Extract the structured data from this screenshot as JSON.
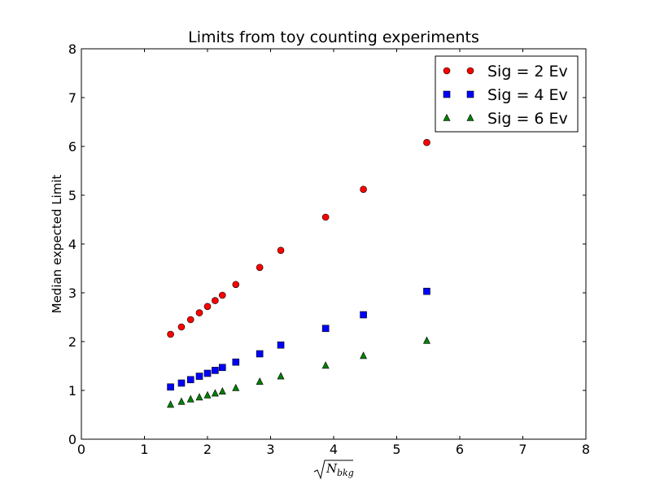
{
  "chart_data": {
    "type": "scatter",
    "title": "Limits from toy counting experiments",
    "xlabel": "N",
    "xlabel_subscript": "bkg",
    "ylabel": "Median expected Limit",
    "xlim": [
      0,
      8
    ],
    "ylim": [
      0,
      8
    ],
    "xticks": [
      "0",
      "1",
      "2",
      "3",
      "4",
      "5",
      "6",
      "7",
      "8"
    ],
    "yticks": [
      "0",
      "1",
      "2",
      "3",
      "4",
      "5",
      "6",
      "7",
      "8"
    ],
    "grid": false,
    "legend_position": "top-right",
    "series": [
      {
        "name": "Sig = 2 Ev",
        "marker": "circle",
        "color": "#ff0000",
        "x": [
          1.414,
          1.587,
          1.732,
          1.871,
          2.0,
          2.121,
          2.236,
          2.449,
          2.828,
          3.162,
          3.873,
          4.472,
          5.477
        ],
        "y": [
          2.15,
          2.3,
          2.45,
          2.59,
          2.72,
          2.84,
          2.95,
          3.17,
          3.52,
          3.87,
          4.55,
          5.12,
          6.08
        ]
      },
      {
        "name": "Sig = 4 Ev",
        "marker": "square",
        "color": "#0000ff",
        "x": [
          1.414,
          1.587,
          1.732,
          1.871,
          2.0,
          2.121,
          2.236,
          2.449,
          2.828,
          3.162,
          3.873,
          4.472,
          5.477
        ],
        "y": [
          1.07,
          1.15,
          1.22,
          1.29,
          1.35,
          1.41,
          1.47,
          1.58,
          1.75,
          1.93,
          2.27,
          2.55,
          3.03
        ]
      },
      {
        "name": "Sig = 6 Ev",
        "marker": "triangle",
        "color": "#008000",
        "x": [
          1.414,
          1.587,
          1.732,
          1.871,
          2.0,
          2.121,
          2.236,
          2.449,
          2.828,
          3.162,
          3.873,
          4.472,
          5.477
        ],
        "y": [
          0.71,
          0.77,
          0.82,
          0.86,
          0.9,
          0.94,
          0.98,
          1.05,
          1.18,
          1.29,
          1.51,
          1.71,
          2.02
        ]
      }
    ]
  }
}
